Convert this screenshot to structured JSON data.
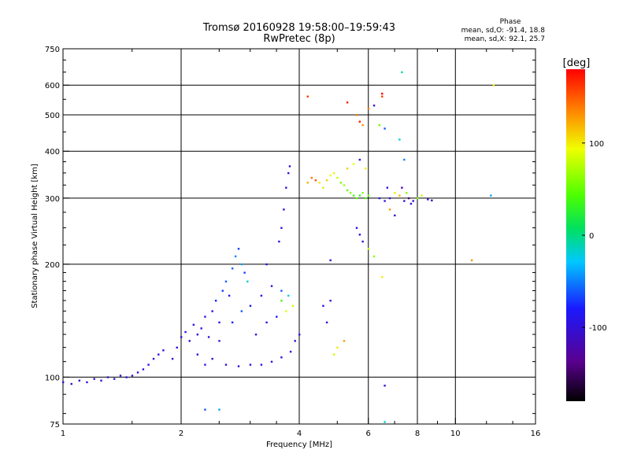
{
  "chart_data": {
    "type": "scatter",
    "title": "Tromsø 20160928 19:58:00–19:59:43",
    "subtitle": "RwPretec (8p)",
    "xlabel": "Frequency [MHz]",
    "ylabel": "Stationary phase Virtual Height [km]",
    "xscale": "log",
    "yscale": "log",
    "xlim": [
      1,
      16
    ],
    "ylim": [
      75,
      750
    ],
    "grid": true,
    "x_ticks_major": [
      1,
      2,
      4,
      8,
      16
    ],
    "x_tick_labels": [
      "1",
      "2",
      "4",
      "6",
      "8",
      "10",
      "16"
    ],
    "x_tick_values": [
      1,
      2,
      4,
      6,
      8,
      10,
      16
    ],
    "x_grid": [
      2,
      4,
      6,
      8,
      10
    ],
    "y_tick_labels": [
      "75",
      "100",
      "200",
      "300",
      "400",
      "500",
      "600",
      "750"
    ],
    "y_tick_values": [
      75,
      100,
      200,
      300,
      400,
      500,
      600,
      750
    ],
    "y_grid": [
      100,
      200,
      300,
      400,
      500,
      600
    ],
    "phase_info": {
      "title": "Phase",
      "line_o": "mean, sd,O: -91.4, 18.8",
      "line_x": "mean, sd,X:  92.1, 25.7"
    },
    "colorbar": {
      "label": "[deg]",
      "min": -180,
      "max": 180,
      "ticks": [
        "100",
        "0",
        "-100"
      ],
      "tick_values": [
        100,
        0,
        -100
      ]
    },
    "series": [
      {
        "points": [
          {
            "f": 1.0,
            "h": 97,
            "p": -100
          },
          {
            "f": 1.05,
            "h": 96,
            "p": -95
          },
          {
            "f": 1.1,
            "h": 98,
            "p": -100
          },
          {
            "f": 1.15,
            "h": 97,
            "p": -90
          },
          {
            "f": 1.2,
            "h": 99,
            "p": -100
          },
          {
            "f": 1.25,
            "h": 98,
            "p": -95
          },
          {
            "f": 1.3,
            "h": 100,
            "p": -100
          },
          {
            "f": 1.35,
            "h": 99,
            "p": -90
          },
          {
            "f": 1.4,
            "h": 101,
            "p": -100
          },
          {
            "f": 1.45,
            "h": 100,
            "p": -95
          },
          {
            "f": 1.5,
            "h": 101,
            "p": -100
          },
          {
            "f": 1.55,
            "h": 103,
            "p": -100
          },
          {
            "f": 1.6,
            "h": 105,
            "p": -95
          },
          {
            "f": 1.65,
            "h": 108,
            "p": -90
          },
          {
            "f": 1.7,
            "h": 112,
            "p": -100
          },
          {
            "f": 1.75,
            "h": 115,
            "p": -95
          },
          {
            "f": 1.8,
            "h": 118,
            "p": -100
          },
          {
            "f": 1.9,
            "h": 112,
            "p": -100
          },
          {
            "f": 1.95,
            "h": 120,
            "p": -95
          },
          {
            "f": 2.0,
            "h": 128,
            "p": -100
          },
          {
            "f": 2.05,
            "h": 132,
            "p": -90
          },
          {
            "f": 2.1,
            "h": 125,
            "p": -100
          },
          {
            "f": 2.15,
            "h": 138,
            "p": -95
          },
          {
            "f": 2.2,
            "h": 130,
            "p": -100
          },
          {
            "f": 2.25,
            "h": 135,
            "p": -90
          },
          {
            "f": 2.3,
            "h": 145,
            "p": -95
          },
          {
            "f": 2.35,
            "h": 128,
            "p": -100
          },
          {
            "f": 2.4,
            "h": 150,
            "p": -90
          },
          {
            "f": 2.45,
            "h": 160,
            "p": -80
          },
          {
            "f": 2.5,
            "h": 140,
            "p": -95
          },
          {
            "f": 2.55,
            "h": 170,
            "p": -70
          },
          {
            "f": 2.6,
            "h": 180,
            "p": -60
          },
          {
            "f": 2.65,
            "h": 165,
            "p": -85
          },
          {
            "f": 2.7,
            "h": 195,
            "p": -60
          },
          {
            "f": 2.75,
            "h": 210,
            "p": -50
          },
          {
            "f": 2.8,
            "h": 220,
            "p": -70
          },
          {
            "f": 2.85,
            "h": 200,
            "p": -40
          },
          {
            "f": 2.9,
            "h": 190,
            "p": -70
          },
          {
            "f": 2.95,
            "h": 180,
            "p": -20
          },
          {
            "f": 2.85,
            "h": 150,
            "p": -60
          },
          {
            "f": 2.7,
            "h": 140,
            "p": -80
          },
          {
            "f": 2.5,
            "h": 125,
            "p": -95
          },
          {
            "f": 2.4,
            "h": 112,
            "p": -100
          },
          {
            "f": 2.3,
            "h": 108,
            "p": -90
          },
          {
            "f": 2.2,
            "h": 115,
            "p": -100
          },
          {
            "f": 2.6,
            "h": 108,
            "p": -100
          },
          {
            "f": 2.8,
            "h": 107,
            "p": -100
          },
          {
            "f": 3.0,
            "h": 108,
            "p": -100
          },
          {
            "f": 3.2,
            "h": 108,
            "p": -95
          },
          {
            "f": 3.4,
            "h": 110,
            "p": -100
          },
          {
            "f": 3.6,
            "h": 113,
            "p": -100
          },
          {
            "f": 3.8,
            "h": 117,
            "p": -95
          },
          {
            "f": 3.0,
            "h": 155,
            "p": -100
          },
          {
            "f": 3.2,
            "h": 165,
            "p": -95
          },
          {
            "f": 3.4,
            "h": 175,
            "p": -90
          },
          {
            "f": 3.6,
            "h": 170,
            "p": -60
          },
          {
            "f": 3.75,
            "h": 165,
            "p": -20
          },
          {
            "f": 3.85,
            "h": 155,
            "p": 80
          },
          {
            "f": 3.7,
            "h": 150,
            "p": 90
          },
          {
            "f": 3.3,
            "h": 140,
            "p": -100
          },
          {
            "f": 3.1,
            "h": 130,
            "p": -100
          },
          {
            "f": 3.5,
            "h": 145,
            "p": -80
          },
          {
            "f": 3.6,
            "h": 160,
            "p": 40
          },
          {
            "f": 3.55,
            "h": 230,
            "p": -100
          },
          {
            "f": 3.6,
            "h": 250,
            "p": -100
          },
          {
            "f": 3.65,
            "h": 280,
            "p": -100
          },
          {
            "f": 3.7,
            "h": 320,
            "p": -100
          },
          {
            "f": 3.75,
            "h": 350,
            "p": -100
          },
          {
            "f": 3.78,
            "h": 365,
            "p": -100
          },
          {
            "f": 3.9,
            "h": 125,
            "p": -100
          },
          {
            "f": 4.0,
            "h": 130,
            "p": -100
          },
          {
            "f": 4.6,
            "h": 155,
            "p": -100
          },
          {
            "f": 4.8,
            "h": 160,
            "p": -100
          },
          {
            "f": 4.7,
            "h": 140,
            "p": -100
          },
          {
            "f": 4.9,
            "h": 115,
            "p": 80
          },
          {
            "f": 5.0,
            "h": 120,
            "p": 100
          },
          {
            "f": 5.2,
            "h": 125,
            "p": 130
          },
          {
            "f": 4.2,
            "h": 330,
            "p": 120
          },
          {
            "f": 4.3,
            "h": 340,
            "p": 140
          },
          {
            "f": 4.4,
            "h": 335,
            "p": 150
          },
          {
            "f": 4.5,
            "h": 330,
            "p": 100
          },
          {
            "f": 4.6,
            "h": 320,
            "p": 80
          },
          {
            "f": 4.7,
            "h": 335,
            "p": 110
          },
          {
            "f": 4.8,
            "h": 345,
            "p": 90
          },
          {
            "f": 4.9,
            "h": 350,
            "p": 100
          },
          {
            "f": 5.0,
            "h": 340,
            "p": 80
          },
          {
            "f": 5.1,
            "h": 330,
            "p": 60
          },
          {
            "f": 5.2,
            "h": 325,
            "p": 70
          },
          {
            "f": 5.3,
            "h": 315,
            "p": 50
          },
          {
            "f": 5.4,
            "h": 310,
            "p": 60
          },
          {
            "f": 5.5,
            "h": 305,
            "p": 40
          },
          {
            "f": 5.6,
            "h": 300,
            "p": 50
          },
          {
            "f": 5.7,
            "h": 305,
            "p": 30
          },
          {
            "f": 5.8,
            "h": 310,
            "p": 60
          },
          {
            "f": 5.9,
            "h": 300,
            "p": 40
          },
          {
            "f": 6.0,
            "h": 305,
            "p": 50
          },
          {
            "f": 5.3,
            "h": 360,
            "p": 110
          },
          {
            "f": 5.5,
            "h": 370,
            "p": 90
          },
          {
            "f": 5.7,
            "h": 380,
            "p": -100
          },
          {
            "f": 5.9,
            "h": 360,
            "p": 100
          },
          {
            "f": 5.6,
            "h": 250,
            "p": -100
          },
          {
            "f": 5.7,
            "h": 240,
            "p": -100
          },
          {
            "f": 5.8,
            "h": 230,
            "p": -100
          },
          {
            "f": 6.0,
            "h": 220,
            "p": 80
          },
          {
            "f": 6.2,
            "h": 210,
            "p": 60
          },
          {
            "f": 6.4,
            "h": 300,
            "p": -100
          },
          {
            "f": 6.6,
            "h": 295,
            "p": -90
          },
          {
            "f": 6.8,
            "h": 300,
            "p": -100
          },
          {
            "f": 7.0,
            "h": 310,
            "p": 100
          },
          {
            "f": 7.2,
            "h": 305,
            "p": 120
          },
          {
            "f": 7.4,
            "h": 295,
            "p": -100
          },
          {
            "f": 7.6,
            "h": 300,
            "p": -150
          },
          {
            "f": 7.8,
            "h": 295,
            "p": -100
          },
          {
            "f": 8.0,
            "h": 300,
            "p": 60
          },
          {
            "f": 8.2,
            "h": 305,
            "p": 80
          },
          {
            "f": 8.5,
            "h": 298,
            "p": -100
          },
          {
            "f": 8.7,
            "h": 296,
            "p": -110
          },
          {
            "f": 6.8,
            "h": 280,
            "p": 130
          },
          {
            "f": 7.0,
            "h": 270,
            "p": -100
          },
          {
            "f": 6.7,
            "h": 320,
            "p": -100
          },
          {
            "f": 7.3,
            "h": 320,
            "p": -120
          },
          {
            "f": 7.5,
            "h": 310,
            "p": 60
          },
          {
            "f": 7.7,
            "h": 290,
            "p": -100
          },
          {
            "f": 5.6,
            "h": 500,
            "p": 140
          },
          {
            "f": 5.7,
            "h": 480,
            "p": 170
          },
          {
            "f": 5.8,
            "h": 470,
            "p": 130
          },
          {
            "f": 6.5,
            "h": 570,
            "p": 180
          },
          {
            "f": 6.5,
            "h": 560,
            "p": 160
          },
          {
            "f": 7.3,
            "h": 650,
            "p": -10
          },
          {
            "f": 6.4,
            "h": 470,
            "p": 50
          },
          {
            "f": 6.6,
            "h": 460,
            "p": -60
          },
          {
            "f": 7.2,
            "h": 430,
            "p": -20
          },
          {
            "f": 7.4,
            "h": 380,
            "p": -50
          },
          {
            "f": 4.2,
            "h": 560,
            "p": 160
          },
          {
            "f": 5.3,
            "h": 540,
            "p": 170
          },
          {
            "f": 6.0,
            "h": 520,
            "p": 140
          },
          {
            "f": 6.2,
            "h": 530,
            "p": -110
          },
          {
            "f": 12.5,
            "h": 600,
            "p": 100
          },
          {
            "f": 12.3,
            "h": 305,
            "p": -40
          },
          {
            "f": 11.0,
            "h": 205,
            "p": 130
          },
          {
            "f": 6.5,
            "h": 185,
            "p": 100
          },
          {
            "f": 6.6,
            "h": 95,
            "p": -100
          },
          {
            "f": 6.6,
            "h": 76,
            "p": -20
          },
          {
            "f": 2.3,
            "h": 82,
            "p": -60
          },
          {
            "f": 2.5,
            "h": 82,
            "p": -40
          },
          {
            "f": 4.8,
            "h": 205,
            "p": -110
          },
          {
            "f": 3.3,
            "h": 200,
            "p": -100
          }
        ]
      }
    ]
  }
}
